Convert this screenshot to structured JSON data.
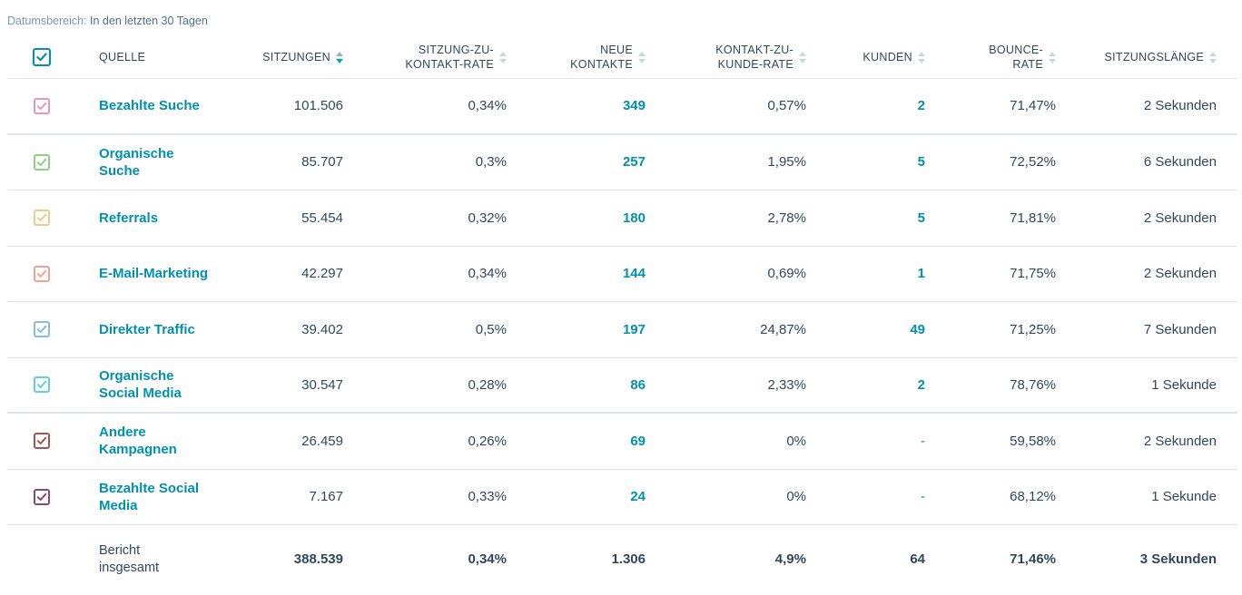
{
  "date_range": {
    "label": "Datumsbereich:",
    "value": "In den letzten 30 Tagen"
  },
  "columns": {
    "source": "QUELLE",
    "sessions": "SITZUNGEN",
    "session_contact_rate_1": "SITZUNG-ZU-",
    "session_contact_rate_2": "KONTAKT-RATE",
    "new_contacts_1": "NEUE",
    "new_contacts_2": "KONTAKTE",
    "contact_customer_rate_1": "KONTAKT-ZU-",
    "contact_customer_rate_2": "KUNDE-RATE",
    "customers": "KUNDEN",
    "bounce_1": "BOUNCE-",
    "bounce_2": "RATE",
    "session_length": "SITZUNGSLÄNGE"
  },
  "header_checkbox_color": "#0091ae",
  "rows": [
    {
      "source_1": "Bezahlte Suche",
      "source_2": "",
      "color": "#e898b4",
      "sessions": "101.506",
      "sc_rate": "0,34%",
      "new_contacts": "349",
      "cc_rate": "0,57%",
      "customers": "2",
      "bounce": "71,47%",
      "length": "2 Sekunden"
    },
    {
      "source_1": "Organische",
      "source_2": "Suche",
      "color": "#8fcf86",
      "sessions": "85.707",
      "sc_rate": "0,3%",
      "new_contacts": "257",
      "cc_rate": "1,95%",
      "customers": "5",
      "bounce": "72,52%",
      "length": "6 Sekunden"
    },
    {
      "source_1": "Referrals",
      "source_2": "",
      "color": "#f3c98d",
      "sessions": "55.454",
      "sc_rate": "0,32%",
      "new_contacts": "180",
      "cc_rate": "2,78%",
      "customers": "5",
      "bounce": "71,81%",
      "length": "2 Sekunden"
    },
    {
      "source_1": "E-Mail-Marketing",
      "source_2": "",
      "color": "#f2a28e",
      "sessions": "42.297",
      "sc_rate": "0,34%",
      "new_contacts": "144",
      "cc_rate": "0,69%",
      "customers": "1",
      "bounce": "71,75%",
      "length": "2 Sekunden"
    },
    {
      "source_1": "Direkter Traffic",
      "source_2": "",
      "color": "#87bce6",
      "sessions": "39.402",
      "sc_rate": "0,5%",
      "new_contacts": "197",
      "cc_rate": "24,87%",
      "customers": "49",
      "bounce": "71,25%",
      "length": "7 Sekunden"
    },
    {
      "source_1": "Organische",
      "source_2": "Social Media",
      "color": "#5dd3d6",
      "sessions": "30.547",
      "sc_rate": "0,28%",
      "new_contacts": "86",
      "cc_rate": "2,33%",
      "customers": "2",
      "bounce": "78,76%",
      "length": "1 Sekunde"
    },
    {
      "source_1": "Andere",
      "source_2": "Kampagnen",
      "color": "#a9534f",
      "sessions": "26.459",
      "sc_rate": "0,26%",
      "new_contacts": "69",
      "cc_rate": "0%",
      "customers": "-",
      "bounce": "59,58%",
      "length": "2 Sekunden"
    },
    {
      "source_1": "Bezahlte Social",
      "source_2": "Media",
      "color": "#8a4a6e",
      "sessions": "7.167",
      "sc_rate": "0,33%",
      "new_contacts": "24",
      "cc_rate": "0%",
      "customers": "-",
      "bounce": "68,12%",
      "length": "1 Sekunde"
    }
  ],
  "total": {
    "label_1": "Bericht",
    "label_2": "insgesamt",
    "sessions": "388.539",
    "sc_rate": "0,34%",
    "new_contacts": "1.306",
    "cc_rate": "4,9%",
    "customers": "64",
    "bounce": "71,46%",
    "length": "3 Sekunden"
  }
}
